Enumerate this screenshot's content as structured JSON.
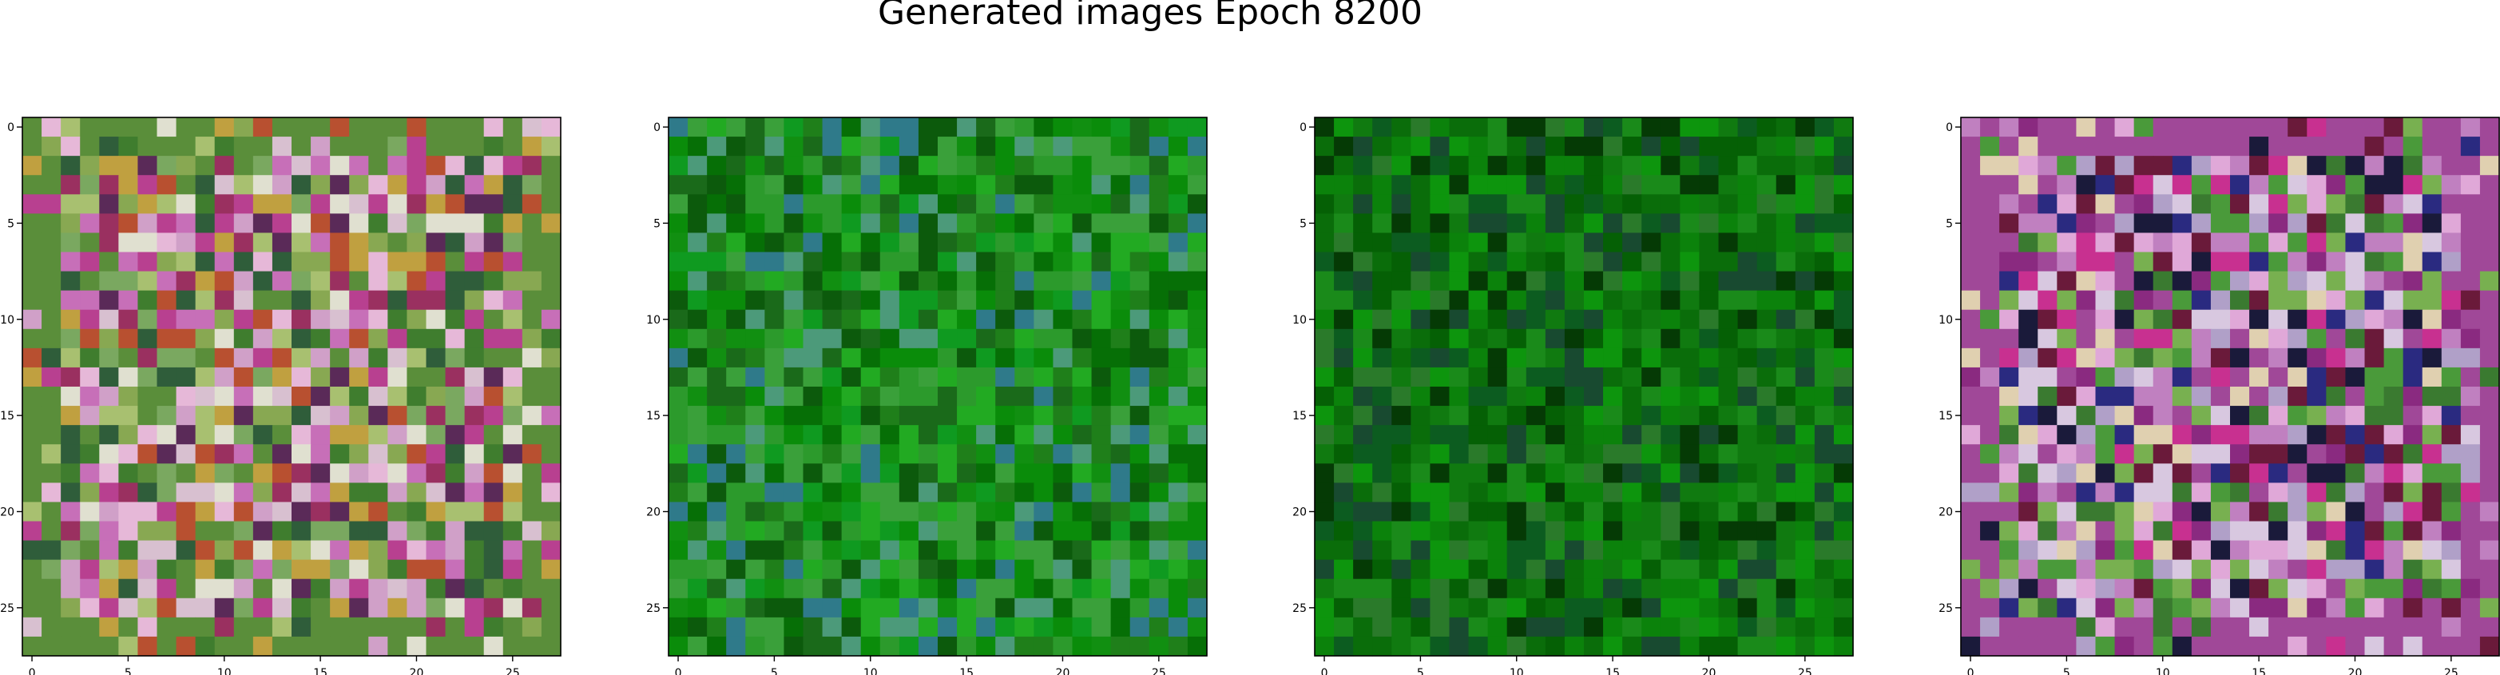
{
  "title": "Generated images Epoch 8200",
  "chart_data": [
    {
      "type": "heatmap",
      "rows": 28,
      "cols": 28,
      "xticks": [
        0,
        5,
        10,
        15,
        20,
        25
      ],
      "yticks": [
        0,
        5,
        10,
        15,
        20,
        25
      ],
      "xlim": [
        -0.5,
        27.5
      ],
      "ylim": [
        27.5,
        -0.5
      ],
      "palette": [
        "#c76fb8",
        "#88a852",
        "#d0a0c8",
        "#5a8e3a",
        "#a8c070",
        "#e6b8d8",
        "#b84090",
        "#3f7d2e",
        "#d8c0d0",
        "#9a3060",
        "#c0a040",
        "#7aa860",
        "#e0e0d0",
        "#5a2a58",
        "#b85030",
        "#2f5d3a"
      ],
      "style": "mixed"
    },
    {
      "type": "heatmap",
      "rows": 28,
      "cols": 28,
      "xticks": [
        0,
        5,
        10,
        15,
        20,
        25
      ],
      "yticks": [
        0,
        5,
        10,
        15,
        20,
        25
      ],
      "xlim": [
        -0.5,
        27.5
      ],
      "ylim": [
        27.5,
        -0.5
      ],
      "palette": [
        "#0a8c0a",
        "#118f11",
        "#1f7f1a",
        "#2c9a2c",
        "#066f06",
        "#3aa03a",
        "#1a6a1a",
        "#0f9a20",
        "#4c9a7a",
        "#2f7a8a",
        "#0c5a0c",
        "#22aa22"
      ],
      "style": "green"
    },
    {
      "type": "heatmap",
      "rows": 28,
      "cols": 28,
      "xticks": [
        0,
        5,
        10,
        15,
        20,
        25
      ],
      "yticks": [
        0,
        5,
        10,
        15,
        20,
        25
      ],
      "xlim": [
        -0.5,
        27.5
      ],
      "ylim": [
        27.5,
        -0.5
      ],
      "palette": [
        "#0b820b",
        "#107a10",
        "#0a6d0a",
        "#1a8a1a",
        "#056005",
        "#2a7a2a",
        "#0c5c20",
        "#0d950d",
        "#053a05",
        "#184a30"
      ],
      "style": "darkgreen"
    },
    {
      "type": "heatmap",
      "rows": 28,
      "cols": 28,
      "xticks": [
        0,
        5,
        10,
        15,
        20,
        25
      ],
      "yticks": [
        0,
        5,
        10,
        15,
        20,
        25
      ],
      "xlim": [
        -0.5,
        27.5
      ],
      "ylim": [
        27.5,
        -0.5
      ],
      "palette": [
        "#c080c0",
        "#e0a8d8",
        "#4a9a3a",
        "#a04898",
        "#d8c8e0",
        "#8a2a80",
        "#2a2a80",
        "#6a1a3a",
        "#c83090",
        "#b0a0c8",
        "#78b050",
        "#3a7a30",
        "#e0d0b0",
        "#1a1a3a"
      ],
      "style": "mixed"
    }
  ]
}
